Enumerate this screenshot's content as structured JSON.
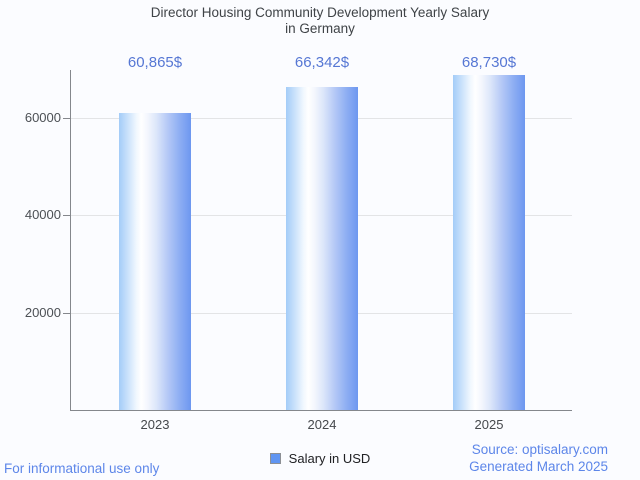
{
  "title": {
    "line1": "Director Housing Community Development Yearly Salary",
    "line2": "in Germany"
  },
  "chart_data": {
    "type": "bar",
    "title": "Director Housing Community Development Yearly Salary in Germany",
    "categories": [
      "2023",
      "2024",
      "2025"
    ],
    "series": [
      {
        "name": "Salary in USD",
        "values": [
          60865,
          66342,
          68730
        ]
      }
    ],
    "value_labels": [
      "60,865$",
      "66,342$",
      "68,730$"
    ],
    "xlabel": "",
    "ylabel": "",
    "ylim": [
      0,
      69750
    ],
    "yticks": [
      20000,
      40000,
      60000
    ],
    "ytick_labels": [
      "20000",
      "40000",
      "60000"
    ],
    "grid": true,
    "legend_position": "bottom",
    "bar_gradient": [
      "#a3ccf8",
      "#ffffff",
      "#6d97f0"
    ]
  },
  "legend": {
    "label": "Salary in USD",
    "marker_color": "#6095f2"
  },
  "footer": {
    "left": "For informational use only",
    "source": "Source: optisalary.com",
    "generated": "Generated March 2025"
  },
  "colors": {
    "background": "#fbfcff",
    "title_text": "#3f4347",
    "value_label_text": "#5677d4",
    "axis_text": "#4c5055",
    "gridline": "#e3e4e6",
    "axis_line": "#84878c",
    "footer_text": "#5d86e9"
  }
}
